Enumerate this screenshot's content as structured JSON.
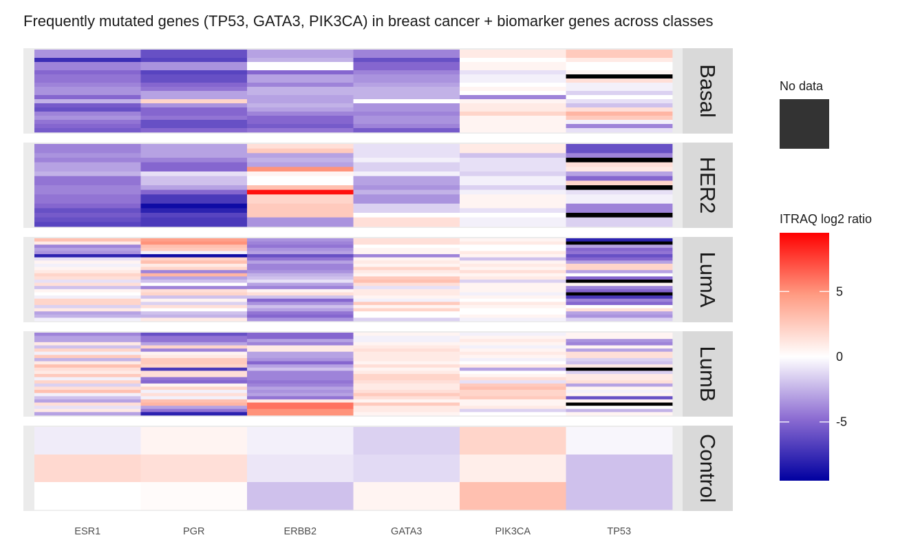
{
  "chart_data": {
    "type": "heatmap",
    "title": "Frequently mutated genes (TP53, GATA3, PIK3CA) in breast cancer + biomarker genes across classes",
    "xlabel": "",
    "ylabel": "",
    "genes": [
      "ESR1",
      "PGR",
      "ERBB2",
      "GATA3",
      "PIK3CA",
      "TP53"
    ],
    "panels": [
      {
        "name": "Basal",
        "rows": [
          [
            -3.5,
            -6,
            -3,
            -4,
            1,
            2.5
          ],
          [
            -3.5,
            -6,
            -3,
            -4,
            1,
            2.5
          ],
          [
            -7.5,
            -6.5,
            -2.5,
            -6,
            0,
            1
          ],
          [
            -4,
            -3.5,
            0,
            -5,
            0.5,
            0
          ],
          [
            -4,
            -3.5,
            0,
            -5,
            0.5,
            0
          ],
          [
            -5,
            -6.5,
            -5,
            -4,
            -1,
            0.5
          ],
          [
            -4.5,
            -6,
            -3,
            -3.5,
            -0.5,
            null
          ],
          [
            -4.5,
            -6,
            -3,
            -3.5,
            -0.5,
            1.5
          ],
          [
            -4,
            -5,
            -4,
            -3,
            0,
            -0.5
          ],
          [
            -3.5,
            -4.5,
            -2.5,
            -2.5,
            0.5,
            -0.5
          ],
          [
            -3.5,
            -3,
            -2.5,
            -2.5,
            0,
            -1.5
          ],
          [
            -5,
            -3,
            -3,
            -2.5,
            -4,
            0
          ],
          [
            -2.5,
            2,
            -3,
            0,
            0.5,
            -1
          ],
          [
            -5.5,
            -3.5,
            -2.5,
            -3.5,
            1,
            -2
          ],
          [
            -6,
            -5,
            -3,
            -3.5,
            1,
            1.5
          ],
          [
            -4,
            -5,
            -4,
            -4,
            2,
            3.5
          ],
          [
            -3.5,
            -4.5,
            -5,
            -3.5,
            0.5,
            2.5
          ],
          [
            -4.5,
            -6,
            -5,
            -3.5,
            0.5,
            -0.5
          ],
          [
            -5,
            -6,
            -5.5,
            -4,
            0.5,
            -4
          ],
          [
            -5.5,
            -5,
            -4.5,
            -5.5,
            0.5,
            -1
          ]
        ]
      },
      {
        "name": "HER2",
        "rows": [
          [
            -4,
            -3,
            1.5,
            -1,
            1,
            -6
          ],
          [
            -4,
            -3,
            2.5,
            -1,
            1,
            -6
          ],
          [
            -3.5,
            -3,
            -3,
            -1,
            -2,
            -4
          ],
          [
            -4,
            -4,
            -2.5,
            -0.5,
            -1,
            null
          ],
          [
            -3,
            -5,
            -3,
            -1.5,
            -1,
            1.5
          ],
          [
            -3,
            -5,
            5,
            -1.5,
            -1,
            1
          ],
          [
            -2.5,
            -1,
            0.5,
            -0.5,
            -1.5,
            -3
          ],
          [
            -4.5,
            -2,
            0,
            -3,
            -0.5,
            -5
          ],
          [
            -4.5,
            -2,
            0,
            -3,
            -0.5,
            2
          ],
          [
            -4,
            -3,
            3,
            -3.5,
            -1.5,
            null
          ],
          [
            -4,
            -5,
            9,
            -2.5,
            -0.5,
            -1
          ],
          [
            -4.5,
            -7,
            2,
            -3.5,
            0.5,
            -0.5
          ],
          [
            -4.5,
            -7,
            2,
            -3.5,
            0.5,
            -0.5
          ],
          [
            -5,
            -9,
            2.5,
            -1.5,
            0.5,
            -4
          ],
          [
            -6,
            -8,
            2.5,
            -1.5,
            -1,
            -4
          ],
          [
            -5.5,
            -6.5,
            2.5,
            0,
            0,
            null
          ],
          [
            -6,
            -7,
            -3.5,
            1.5,
            -0.5,
            -1.5
          ],
          [
            -6.5,
            -7,
            -3.5,
            1.5,
            -0.5,
            -1.5
          ]
        ]
      },
      {
        "name": "LumA",
        "rows": [
          [
            3,
            4.5,
            -3.5,
            1.5,
            0.5,
            -8
          ],
          [
            1,
            5,
            -4,
            1.5,
            1,
            null
          ],
          [
            -4,
            3,
            -4.5,
            0,
            0,
            -3
          ],
          [
            -3,
            2.5,
            -3.5,
            0.5,
            0,
            -5
          ],
          [
            -3.5,
            -0.5,
            -3,
            0.5,
            1,
            -4.5
          ],
          [
            -8,
            -9,
            -6,
            -4,
            0.5,
            -6
          ],
          [
            -1,
            2,
            -4.5,
            0.5,
            -2,
            -5
          ],
          [
            0.5,
            3,
            -3,
            1,
            0.5,
            -3
          ],
          [
            -0.5,
            1,
            -4,
            0.5,
            1,
            2
          ],
          [
            0.5,
            2,
            -4,
            2,
            0.5,
            2
          ],
          [
            1,
            -4,
            -3.5,
            1,
            1.5,
            -3
          ],
          [
            2,
            3.5,
            -2.5,
            0.5,
            0.5,
            0
          ],
          [
            1.5,
            -3,
            -2,
            2.5,
            1,
            -5
          ],
          [
            -1,
            -2,
            -1,
            3,
            -1.5,
            null
          ],
          [
            1.5,
            0,
            -3,
            1.5,
            0.5,
            0.5
          ],
          [
            -2,
            -4,
            -4,
            -1,
            0.5,
            -4
          ],
          [
            0.5,
            1.5,
            0.5,
            1,
            0.5,
            -5
          ],
          [
            0,
            2,
            1.5,
            1,
            -0.5,
            null
          ],
          [
            -0.5,
            -2,
            -2,
            0.5,
            0.5,
            -7
          ],
          [
            2,
            0.5,
            -5,
            -0.5,
            0,
            -4
          ],
          [
            2,
            -1.5,
            -3.5,
            2.5,
            1,
            -5
          ],
          [
            -1.5,
            1.5,
            -2,
            0.5,
            0.5,
            0
          ],
          [
            1,
            0,
            -3,
            2,
            0,
            1.5
          ],
          [
            -3,
            -2,
            -4.5,
            0,
            0,
            -3
          ],
          [
            -2.5,
            -2.5,
            -5,
            0,
            0.5,
            -3.5
          ],
          [
            -0.5,
            1,
            -3.5,
            -1.5,
            -0.5,
            -1.5
          ]
        ]
      },
      {
        "name": "LumB",
        "rows": [
          [
            -4,
            -6,
            -5,
            0.5,
            -0.5,
            0.5
          ],
          [
            -3,
            -4.5,
            -5,
            -0.5,
            0.5,
            0.5
          ],
          [
            -3,
            -4.5,
            -3,
            -0.5,
            1,
            -3.5
          ],
          [
            1,
            -3,
            -4,
            0.5,
            0.5,
            -4
          ],
          [
            -2,
            2,
            1,
            1,
            -0.5,
            0.5
          ],
          [
            2,
            -4,
            1,
            1.5,
            0.5,
            -3
          ],
          [
            -0.5,
            0.5,
            -3,
            1,
            1,
            1.5
          ],
          [
            2.5,
            1,
            -3,
            1,
            0.5,
            1.5
          ],
          [
            -2.5,
            2.5,
            -3.5,
            1,
            -0.5,
            -1.5
          ],
          [
            1,
            2.5,
            -5,
            0.5,
            0,
            -2
          ],
          [
            3,
            2,
            -3,
            1.5,
            1,
            1
          ],
          [
            1.5,
            -7,
            -2,
            0.5,
            -3,
            null
          ],
          [
            1,
            1.5,
            -4,
            1,
            0,
            -1.5
          ],
          [
            2.5,
            1.5,
            -4,
            2,
            0.5,
            1
          ],
          [
            -0.5,
            -4.5,
            -4,
            2,
            1.5,
            1
          ],
          [
            2,
            -5,
            -4.5,
            1.5,
            -1,
            1.5
          ],
          [
            -1.5,
            0.5,
            -4,
            1,
            2.5,
            -3
          ],
          [
            1.5,
            2,
            -3,
            1,
            3,
            0.5
          ],
          [
            3,
            -0.5,
            -3.5,
            1.5,
            2,
            -0.5
          ],
          [
            -0.5,
            1.5,
            -3,
            2.5,
            2,
            0.5
          ],
          [
            -2,
            -0.5,
            -4.5,
            1.5,
            2.5,
            -6
          ],
          [
            -3,
            3,
            1,
            0.5,
            0.5,
            0.5
          ],
          [
            1.5,
            3.5,
            6,
            2.5,
            0.5,
            null
          ],
          [
            -1,
            -3,
            6,
            1,
            1,
            0
          ],
          [
            1,
            -4.5,
            5,
            1,
            -1.5,
            -2.5
          ],
          [
            -3,
            -8,
            5,
            0.5,
            0,
            0.5
          ]
        ]
      },
      {
        "name": "Control",
        "rows": [
          [
            -0.6,
            0.5,
            -0.5,
            -1.5,
            2,
            -0.3
          ],
          [
            1.8,
            1.5,
            -0.8,
            -1.2,
            0.8,
            -2
          ],
          [
            0,
            0.2,
            -2,
            0.5,
            3,
            -2
          ]
        ]
      }
    ],
    "color_scale": {
      "title": "ITRAQ log2 ratio",
      "low_color": "#0000a0",
      "mid_color": "#ffffff",
      "high_color": "#ff0000",
      "limits": [
        -9.5,
        9.5
      ],
      "breaks": [
        5,
        0,
        -5
      ],
      "break_labels": [
        "5",
        "0",
        "-5"
      ]
    },
    "na_legend": {
      "title": "No data",
      "color": "#333333"
    },
    "na_color": "#000000",
    "panel_background": "#ebebeb",
    "strip_background": "#d9d9d9"
  }
}
